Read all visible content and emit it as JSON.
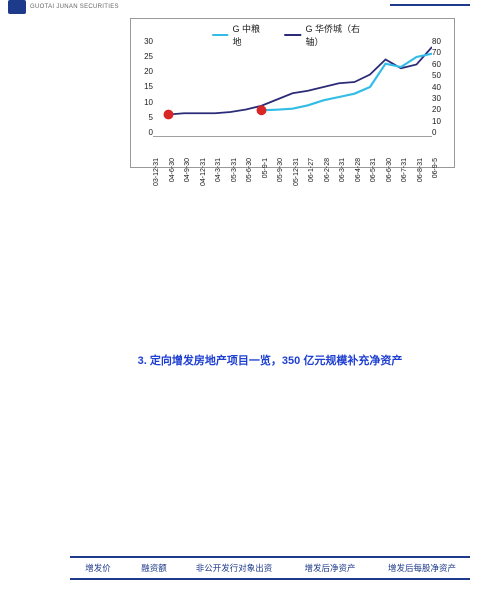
{
  "header": {
    "brand_text": "GUOTAI JUNAN SECURITIES"
  },
  "chart": {
    "type": "line",
    "legend": [
      {
        "label": "G 中粮地",
        "color": "#33bde6"
      },
      {
        "label": "G 华侨城（右轴）",
        "color": "#2b2b77"
      }
    ],
    "y_left": {
      "min": 0,
      "max": 30,
      "step": 5
    },
    "y_right": {
      "min": 0,
      "max": 80,
      "step": 10
    },
    "x_labels": [
      "03-12-31",
      "04-6-30",
      "04-9-30",
      "04-12-31",
      "04-3-31",
      "05-3-31",
      "05-6-30",
      "05-9-1",
      "05-9-30",
      "05-12-31",
      "06-1-27",
      "06-2-28",
      "06-3-31",
      "06-4-28",
      "06-5-31",
      "06-6-30",
      "06-7-31",
      "06-8-31",
      "06-9-5"
    ],
    "series_left": {
      "color": "#33bde6",
      "width": 2.2,
      "start_index": 7,
      "values": [
        8,
        8.2,
        8.5,
        9.5,
        11,
        12,
        13,
        15,
        22,
        21,
        24,
        25
      ]
    },
    "series_right": {
      "color": "#2b2b77",
      "width": 1.8,
      "start_index": 1,
      "values": [
        18,
        19,
        19,
        19,
        20,
        22,
        25,
        30,
        35,
        37,
        40,
        43,
        44,
        50,
        62,
        55,
        58,
        72
      ]
    },
    "markers": [
      {
        "x_index": 1,
        "value": 18,
        "axis": "right",
        "color": "#d92626",
        "r": 5
      },
      {
        "x_index": 7,
        "value": 8,
        "axis": "left",
        "color": "#d92626",
        "r": 5
      }
    ],
    "axis_line_color": "#404040",
    "font_size_ticks": 8
  },
  "section": {
    "num": "3.",
    "title": "定向增发房地产项目一览，350 亿元规模补充净资产"
  },
  "table": {
    "columns": [
      "增发价",
      "融资额",
      "非公开发行对象出资",
      "增发后净资产",
      "增发后每股净资产"
    ],
    "line_color": "#1e3a8a",
    "text_color": "#1e3a8a"
  }
}
